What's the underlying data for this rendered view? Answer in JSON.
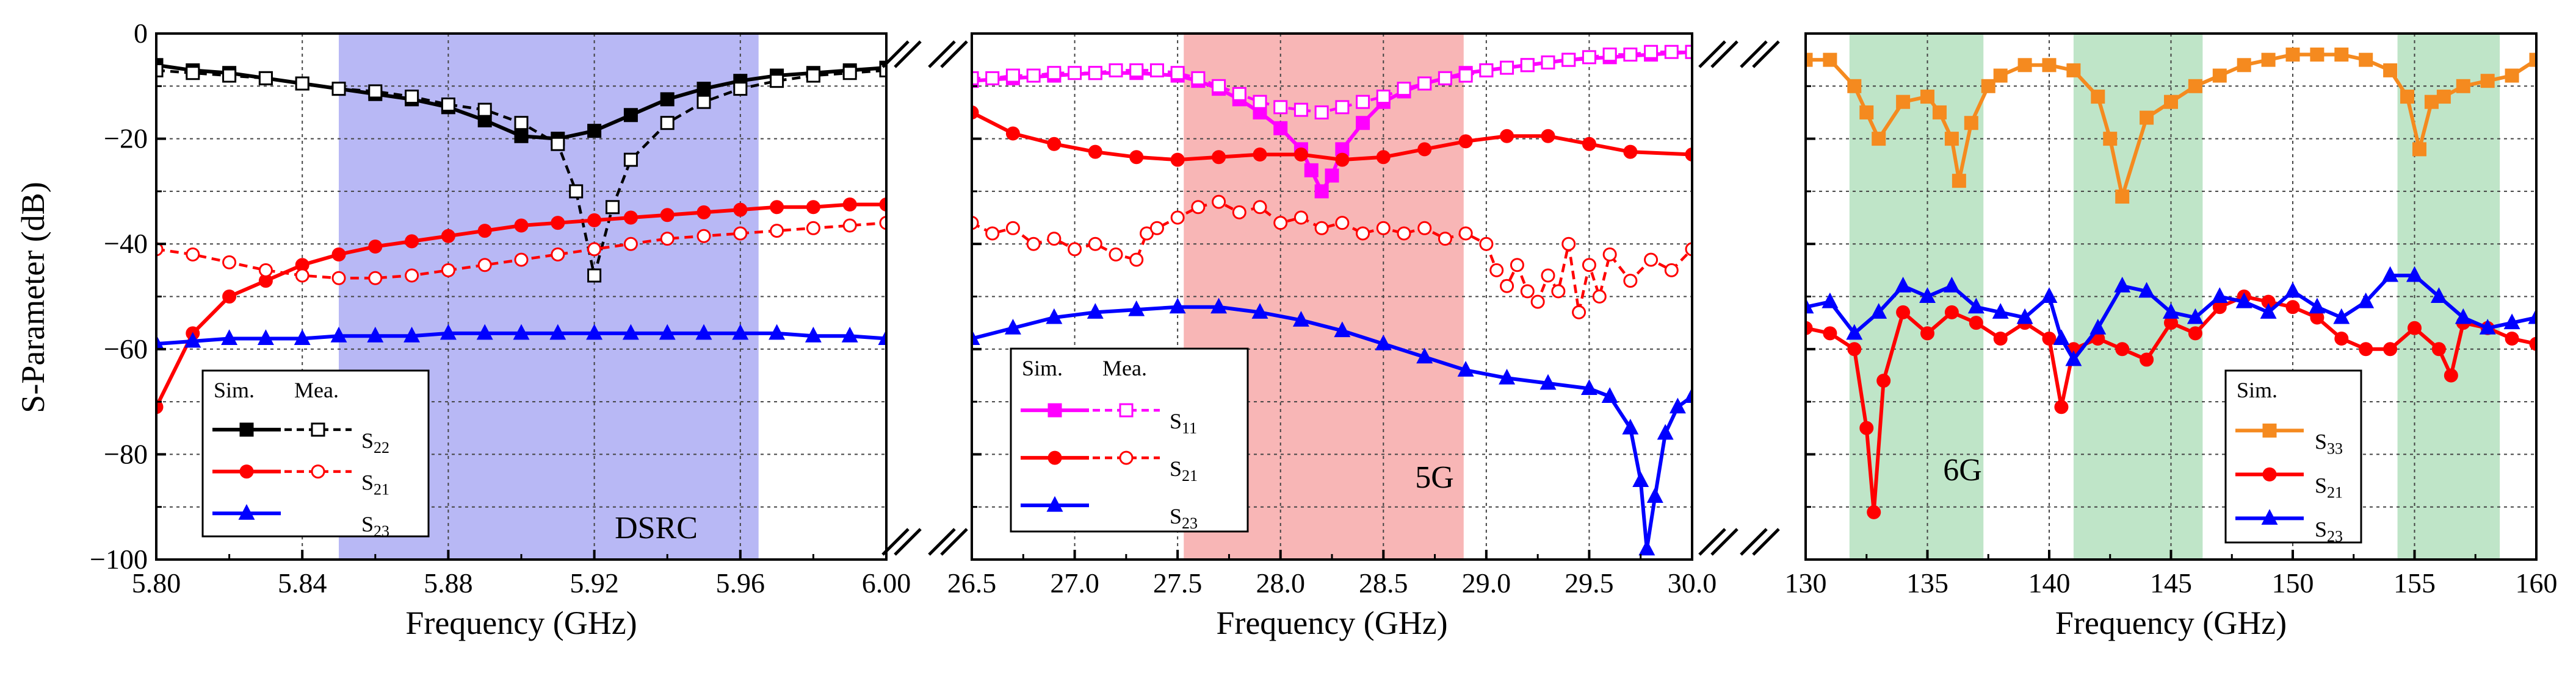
{
  "figure": {
    "y_axis_label": "S-Parameter (dB)",
    "y_ticks": [
      "0",
      "−20",
      "−40",
      "−60",
      "−80",
      "−100"
    ]
  },
  "chart_data": [
    {
      "type": "line",
      "panel": "DSRC",
      "xlabel": "Frequency (GHz)",
      "ylabel": "S-Parameter (dB)",
      "xlim": [
        5.8,
        6.0
      ],
      "ylim": [
        -100,
        0
      ],
      "x_ticks": [
        5.8,
        5.84,
        5.88,
        5.92,
        5.96,
        6.0
      ],
      "x_tick_labels": [
        "5.80",
        "5.84",
        "5.88",
        "5.92",
        "5.96",
        "6.00"
      ],
      "grid": true,
      "band": {
        "label": "DSRC",
        "from": 5.85,
        "to": 5.965,
        "color": "#b8b8f5"
      },
      "legend": {
        "position": "bottom-left",
        "header_sim": "Sim.",
        "header_mea": "Mea.",
        "entries": [
          {
            "name": "S",
            "sub": "22",
            "sim": true,
            "mea": true,
            "color": "#000000",
            "marker": "square"
          },
          {
            "name": "S",
            "sub": "21",
            "sim": true,
            "mea": true,
            "color": "#ff0000",
            "marker": "circle"
          },
          {
            "name": "S",
            "sub": "23",
            "sim": true,
            "mea": false,
            "color": "#0000ff",
            "marker": "triangle"
          }
        ]
      },
      "series": [
        {
          "name": "S22 Sim.",
          "color": "#000000",
          "dash": "solid",
          "marker": "square",
          "filled": true,
          "x": [
            5.8,
            5.81,
            5.82,
            5.83,
            5.84,
            5.85,
            5.86,
            5.87,
            5.88,
            5.89,
            5.9,
            5.91,
            5.92,
            5.93,
            5.94,
            5.95,
            5.96,
            5.97,
            5.98,
            5.99,
            6.0
          ],
          "y": [
            -6,
            -7,
            -7.5,
            -8.5,
            -9.5,
            -10.5,
            -11.5,
            -12.5,
            -14,
            -16.5,
            -19.5,
            -20,
            -18.5,
            -15.5,
            -12.5,
            -10.5,
            -9,
            -8,
            -7.5,
            -7,
            -6.5
          ]
        },
        {
          "name": "S22 Mea.",
          "color": "#000000",
          "dash": "dash",
          "marker": "square",
          "filled": false,
          "x": [
            5.8,
            5.81,
            5.82,
            5.83,
            5.84,
            5.85,
            5.86,
            5.87,
            5.88,
            5.89,
            5.9,
            5.91,
            5.915,
            5.92,
            5.925,
            5.93,
            5.94,
            5.95,
            5.96,
            5.97,
            5.98,
            5.99,
            6.0
          ],
          "y": [
            -7,
            -7.5,
            -8,
            -8.5,
            -9.5,
            -10.5,
            -11,
            -12,
            -13.5,
            -14.5,
            -17,
            -21,
            -30,
            -46,
            -33,
            -24,
            -17,
            -13,
            -10.5,
            -9,
            -8,
            -7.5,
            -7
          ]
        },
        {
          "name": "S21 Sim.",
          "color": "#ff0000",
          "dash": "solid",
          "marker": "circle",
          "filled": true,
          "x": [
            5.8,
            5.81,
            5.82,
            5.83,
            5.84,
            5.85,
            5.86,
            5.87,
            5.88,
            5.89,
            5.9,
            5.91,
            5.92,
            5.93,
            5.94,
            5.95,
            5.96,
            5.97,
            5.98,
            5.99,
            6.0
          ],
          "y": [
            -71,
            -57,
            -50,
            -47,
            -44,
            -42,
            -40.5,
            -39.5,
            -38.5,
            -37.5,
            -36.5,
            -36,
            -35.5,
            -35,
            -34.5,
            -34,
            -33.5,
            -33,
            -33,
            -32.5,
            -32.5
          ]
        },
        {
          "name": "S21 Mea.",
          "color": "#ff0000",
          "dash": "dash",
          "marker": "circle",
          "filled": false,
          "x": [
            5.8,
            5.81,
            5.82,
            5.83,
            5.84,
            5.85,
            5.86,
            5.87,
            5.88,
            5.89,
            5.9,
            5.91,
            5.92,
            5.93,
            5.94,
            5.95,
            5.96,
            5.97,
            5.98,
            5.99,
            6.0
          ],
          "y": [
            -41,
            -42,
            -43.5,
            -45,
            -46,
            -46.5,
            -46.5,
            -46,
            -45,
            -44,
            -43,
            -42,
            -41,
            -40,
            -39,
            -38.5,
            -38,
            -37.5,
            -37,
            -36.5,
            -36
          ]
        },
        {
          "name": "S23 Sim.",
          "color": "#0000ff",
          "dash": "solid",
          "marker": "triangle",
          "filled": true,
          "x": [
            5.8,
            5.81,
            5.82,
            5.83,
            5.84,
            5.85,
            5.86,
            5.87,
            5.88,
            5.89,
            5.9,
            5.91,
            5.92,
            5.93,
            5.94,
            5.95,
            5.96,
            5.97,
            5.98,
            5.99,
            6.0
          ],
          "y": [
            -59,
            -58.5,
            -58,
            -58,
            -58,
            -57.5,
            -57.5,
            -57.5,
            -57,
            -57,
            -57,
            -57,
            -57,
            -57,
            -57,
            -57,
            -57,
            -57,
            -57.5,
            -57.5,
            -58
          ]
        }
      ]
    },
    {
      "type": "line",
      "panel": "5G",
      "xlabel": "Frequency (GHz)",
      "ylabel": "",
      "xlim": [
        26.5,
        30.0
      ],
      "ylim": [
        -100,
        0
      ],
      "x_ticks": [
        26.5,
        27.0,
        27.5,
        28.0,
        28.5,
        29.0,
        29.5,
        30.0
      ],
      "x_tick_labels": [
        "26.5",
        "27.0",
        "27.5",
        "28.0",
        "28.5",
        "29.0",
        "29.5",
        "30.0"
      ],
      "grid": true,
      "band": {
        "label": "5G",
        "from": 27.53,
        "to": 28.89,
        "color": "#f8b6b6"
      },
      "legend": {
        "position": "bottom-left",
        "header_sim": "Sim.",
        "header_mea": "Mea.",
        "entries": [
          {
            "name": "S",
            "sub": "11",
            "sim": true,
            "mea": true,
            "color": "#ff00ff",
            "marker": "square"
          },
          {
            "name": "S",
            "sub": "21",
            "sim": true,
            "mea": true,
            "color": "#ff0000",
            "marker": "circle"
          },
          {
            "name": "S",
            "sub": "23",
            "sim": true,
            "mea": false,
            "color": "#0000ff",
            "marker": "triangle"
          }
        ]
      },
      "series": [
        {
          "name": "S11 Sim.",
          "color": "#ff00ff",
          "dash": "solid",
          "marker": "square",
          "filled": true,
          "x": [
            26.5,
            26.7,
            26.9,
            27.1,
            27.3,
            27.5,
            27.6,
            27.7,
            27.8,
            27.9,
            28.0,
            28.1,
            28.15,
            28.2,
            28.25,
            28.3,
            28.4,
            28.5,
            28.6,
            28.7,
            28.8,
            28.9,
            29.0,
            29.2,
            29.4,
            29.6,
            29.8,
            30.0
          ],
          "y": [
            -9,
            -8.5,
            -8,
            -7.5,
            -7.5,
            -8,
            -9,
            -10.5,
            -12.5,
            -15,
            -18,
            -22,
            -26,
            -30,
            -27,
            -22,
            -17,
            -13,
            -11,
            -9.5,
            -8.5,
            -7.5,
            -7,
            -6,
            -5,
            -4.5,
            -4,
            -3.5
          ]
        },
        {
          "name": "S11 Mea.",
          "color": "#ff00ff",
          "dash": "dash",
          "marker": "square",
          "filled": false,
          "x": [
            26.5,
            26.6,
            26.7,
            26.8,
            26.9,
            27.0,
            27.1,
            27.2,
            27.3,
            27.4,
            27.5,
            27.6,
            27.7,
            27.8,
            27.9,
            28.0,
            28.1,
            28.2,
            28.3,
            28.4,
            28.5,
            28.6,
            28.7,
            28.8,
            28.9,
            29.0,
            29.1,
            29.2,
            29.3,
            29.4,
            29.5,
            29.6,
            29.7,
            29.8,
            29.9,
            30.0
          ],
          "y": [
            -8.5,
            -8.5,
            -8,
            -8,
            -7.5,
            -7.5,
            -7.5,
            -7,
            -7,
            -7,
            -7.5,
            -8.5,
            -10,
            -11.5,
            -13,
            -14,
            -14.5,
            -15,
            -14,
            -13,
            -12,
            -10.5,
            -9.5,
            -8.5,
            -8,
            -7,
            -6.5,
            -6,
            -5.5,
            -5,
            -4.5,
            -4,
            -4,
            -3.5,
            -3.5,
            -3.5
          ]
        },
        {
          "name": "S21 Sim.",
          "color": "#ff0000",
          "dash": "solid",
          "marker": "circle",
          "filled": true,
          "x": [
            26.5,
            26.7,
            26.9,
            27.1,
            27.3,
            27.5,
            27.7,
            27.9,
            28.1,
            28.3,
            28.5,
            28.7,
            28.9,
            29.1,
            29.3,
            29.5,
            29.7,
            30.0
          ],
          "y": [
            -15,
            -19,
            -21,
            -22.5,
            -23.5,
            -24,
            -23.5,
            -23,
            -23,
            -24,
            -23.5,
            -22,
            -20.5,
            -19.5,
            -19.5,
            -21,
            -22.5,
            -23
          ]
        },
        {
          "name": "S21 Mea.",
          "color": "#ff0000",
          "dash": "dash",
          "marker": "circle",
          "filled": false,
          "x": [
            26.5,
            26.6,
            26.7,
            26.8,
            26.9,
            27.0,
            27.1,
            27.2,
            27.3,
            27.35,
            27.4,
            27.5,
            27.6,
            27.7,
            27.8,
            27.9,
            28.0,
            28.1,
            28.2,
            28.3,
            28.4,
            28.5,
            28.6,
            28.7,
            28.8,
            28.9,
            29.0,
            29.05,
            29.1,
            29.15,
            29.2,
            29.25,
            29.3,
            29.35,
            29.4,
            29.45,
            29.5,
            29.55,
            29.6,
            29.7,
            29.8,
            29.9,
            30.0
          ],
          "y": [
            -36,
            -38,
            -37,
            -40,
            -39,
            -41,
            -40,
            -42,
            -43,
            -38,
            -37,
            -35,
            -33,
            -32,
            -34,
            -33,
            -36,
            -35,
            -37,
            -36,
            -38,
            -37,
            -38,
            -37,
            -39,
            -38,
            -40,
            -45,
            -48,
            -44,
            -49,
            -51,
            -46,
            -49,
            -40,
            -53,
            -44,
            -50,
            -42,
            -47,
            -43,
            -45,
            -41
          ]
        },
        {
          "name": "S23 Sim.",
          "color": "#0000ff",
          "dash": "solid",
          "marker": "triangle",
          "filled": true,
          "x": [
            26.5,
            26.7,
            26.9,
            27.1,
            27.3,
            27.5,
            27.7,
            27.9,
            28.1,
            28.3,
            28.5,
            28.7,
            28.9,
            29.1,
            29.3,
            29.5,
            29.6,
            29.7,
            29.75,
            29.78,
            29.82,
            29.87,
            29.93,
            30.0
          ],
          "y": [
            -58,
            -56,
            -54,
            -53,
            -52.5,
            -52,
            -52,
            -53,
            -54.5,
            -56.5,
            -59,
            -61.5,
            -64,
            -65.5,
            -66.5,
            -67.5,
            -69,
            -75,
            -85,
            -98,
            -88,
            -76,
            -71,
            -69
          ]
        }
      ]
    },
    {
      "type": "line",
      "panel": "6G",
      "xlabel": "Frequency (GHz)",
      "ylabel": "",
      "xlim": [
        130,
        160
      ],
      "ylim": [
        -100,
        0
      ],
      "x_ticks": [
        130,
        135,
        140,
        145,
        150,
        155,
        160
      ],
      "x_tick_labels": [
        "130",
        "135",
        "140",
        "145",
        "150",
        "155",
        "160"
      ],
      "grid": true,
      "bands": [
        {
          "from": 131.8,
          "to": 137.3,
          "color": "#bfe5c8"
        },
        {
          "from": 141.0,
          "to": 146.3,
          "color": "#bfe5c8"
        },
        {
          "from": 154.3,
          "to": 158.5,
          "color": "#bfe5c8"
        }
      ],
      "band_label": "6G",
      "legend": {
        "position": "bottom-right",
        "header_sim": "Sim.",
        "entries": [
          {
            "name": "S",
            "sub": "33",
            "sim": true,
            "color": "#f58a1f",
            "marker": "square"
          },
          {
            "name": "S",
            "sub": "21",
            "sim": true,
            "color": "#ff0000",
            "marker": "circle"
          },
          {
            "name": "S",
            "sub": "23",
            "sim": true,
            "color": "#0000ff",
            "marker": "triangle"
          }
        ]
      },
      "series": [
        {
          "name": "S33 Sim.",
          "color": "#f58a1f",
          "dash": "solid",
          "marker": "square",
          "filled": true,
          "x": [
            130,
            131,
            132,
            132.5,
            133,
            134,
            135,
            135.5,
            136,
            136.3,
            136.8,
            137.5,
            138,
            139,
            140,
            141,
            142,
            142.5,
            143,
            144,
            145,
            146,
            147,
            148,
            149,
            150,
            151,
            152,
            153,
            154,
            154.7,
            155.2,
            155.7,
            156.2,
            157,
            158,
            159,
            160
          ],
          "y": [
            -5,
            -5,
            -10,
            -15,
            -20,
            -13,
            -12,
            -15,
            -20,
            -28,
            -17,
            -10,
            -8,
            -6,
            -6,
            -7,
            -12,
            -20,
            -31,
            -16,
            -13,
            -10,
            -8,
            -6,
            -5,
            -4,
            -4,
            -4,
            -5,
            -7,
            -12,
            -22,
            -13,
            -12,
            -10,
            -9,
            -8,
            -5
          ]
        },
        {
          "name": "S21 Sim.",
          "color": "#ff0000",
          "dash": "solid",
          "marker": "circle",
          "filled": true,
          "x": [
            130,
            131,
            132,
            132.5,
            132.8,
            133.2,
            134,
            135,
            136,
            137,
            138,
            139,
            140,
            140.5,
            141,
            142,
            143,
            144,
            145,
            146,
            147,
            148,
            149,
            150,
            151,
            152,
            153,
            154,
            155,
            156,
            156.5,
            157,
            158,
            159,
            160
          ],
          "y": [
            -56,
            -57,
            -60,
            -75,
            -91,
            -66,
            -53,
            -57,
            -53,
            -55,
            -58,
            -55,
            -58,
            -71,
            -60,
            -58,
            -60,
            -62,
            -55,
            -57,
            -52,
            -50,
            -51,
            -52,
            -54,
            -58,
            -60,
            -60,
            -56,
            -60,
            -65,
            -55,
            -56,
            -58,
            -59
          ]
        },
        {
          "name": "S23 Sim.",
          "color": "#0000ff",
          "dash": "solid",
          "marker": "triangle",
          "filled": true,
          "x": [
            130,
            131,
            132,
            133,
            134,
            135,
            136,
            137,
            138,
            139,
            140,
            140.5,
            141,
            142,
            143,
            144,
            145,
            146,
            147,
            148,
            149,
            150,
            151,
            152,
            153,
            154,
            155,
            156,
            157,
            158,
            159,
            160
          ],
          "y": [
            -52,
            -51,
            -57,
            -53,
            -48,
            -50,
            -48,
            -52,
            -53,
            -54,
            -50,
            -58,
            -62,
            -56,
            -48,
            -49,
            -53,
            -54,
            -50,
            -51,
            -53,
            -49,
            -52,
            -54,
            -51,
            -46,
            -46,
            -50,
            -54,
            -56,
            -55,
            -54
          ]
        }
      ]
    }
  ]
}
